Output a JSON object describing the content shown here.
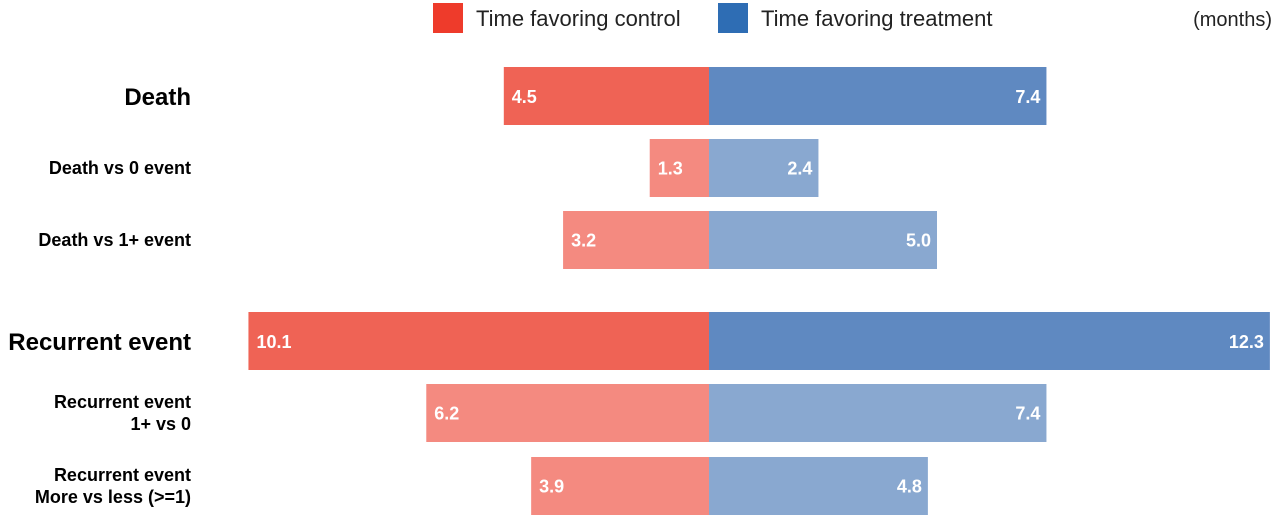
{
  "chart_data": {
    "type": "bar",
    "orientation": "horizontal-diverging",
    "unit": "(months)",
    "legend": [
      {
        "label": "Time favoring control",
        "color": "#ee3b2b"
      },
      {
        "label": "Time favoring treatment",
        "color": "#2e6db4"
      }
    ],
    "categories": [
      {
        "label": [
          "Death"
        ],
        "level": "main",
        "control": 4.5,
        "treatment": 7.4
      },
      {
        "label": [
          "Death vs 0 event"
        ],
        "level": "sub",
        "control": 1.3,
        "treatment": 2.4
      },
      {
        "label": [
          "Death vs 1+ event"
        ],
        "level": "sub",
        "control": 3.2,
        "treatment": 5.0
      },
      {
        "label": [
          "Recurrent event"
        ],
        "level": "main",
        "control": 10.1,
        "treatment": 12.3
      },
      {
        "label": [
          "Recurrent event",
          "1+ vs 0"
        ],
        "level": "sub",
        "control": 6.2,
        "treatment": 7.4
      },
      {
        "label": [
          "Recurrent event",
          "More vs less (>=1)"
        ],
        "level": "sub",
        "control": 3.9,
        "treatment": 4.8
      }
    ],
    "colors": {
      "control_main": "#ef6355",
      "control_sub": "#f48a80",
      "treatment_main": "#5f89c1",
      "treatment_sub": "#89a8d0"
    }
  }
}
